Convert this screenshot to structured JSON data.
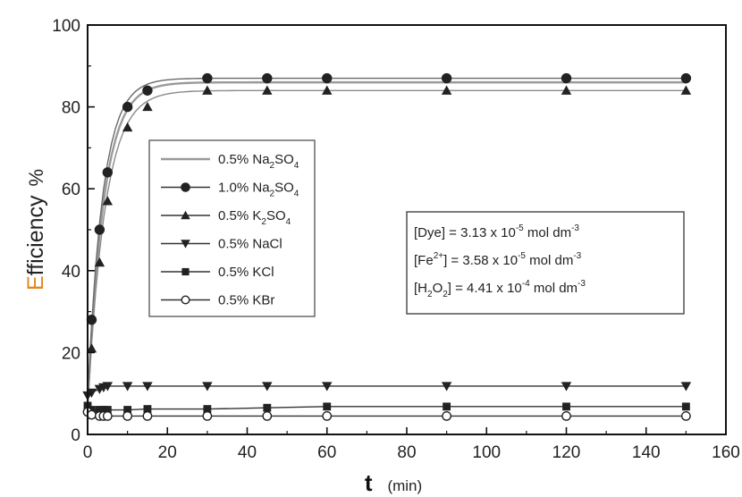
{
  "chart_data": {
    "type": "line",
    "xlabel": "t",
    "xunit": "(min)",
    "ylabel_part1": "Efficiency",
    "ylabel_part2": "%",
    "xlim": [
      0,
      160
    ],
    "ylim": [
      0,
      100
    ],
    "xticks": [
      0,
      20,
      40,
      60,
      80,
      100,
      120,
      140,
      160
    ],
    "yticks": [
      0,
      20,
      40,
      60,
      80,
      100
    ],
    "grid": false,
    "legend_position": "center-left",
    "ylabel_colors": {
      "first": "#e0891e",
      "rest": "#222222"
    },
    "series": [
      {
        "name": "0.5% Na2SO4",
        "label_main": "0.5% Na",
        "sub1": "2",
        "mid": "SO",
        "sub2": "4",
        "marker": "none",
        "fit": true,
        "x": [
          0,
          2,
          3,
          5,
          10,
          15,
          30,
          45,
          60,
          90,
          120,
          150
        ],
        "y": [
          25,
          46,
          54,
          61,
          78,
          83,
          86,
          86,
          86,
          86,
          86,
          86
        ]
      },
      {
        "name": "1.0% Na2SO4",
        "label_main": "1.0% Na",
        "sub1": "2",
        "mid": "SO",
        "sub2": "4",
        "marker": "circle-filled",
        "fit": true,
        "x": [
          1,
          3,
          5,
          10,
          15,
          30,
          45,
          60,
          90,
          120,
          150
        ],
        "y": [
          28,
          50,
          64,
          80,
          84,
          87,
          87,
          87,
          87,
          87,
          87
        ]
      },
      {
        "name": "0.5% K2SO4",
        "label_main": "0.5% K",
        "sub1": "2",
        "mid": "SO",
        "sub2": "4",
        "marker": "triangle-up",
        "fit": true,
        "x": [
          1,
          3,
          5,
          10,
          15,
          30,
          45,
          60,
          90,
          120,
          150
        ],
        "y": [
          21,
          42,
          57,
          75,
          80,
          84,
          84,
          84,
          84,
          84,
          84
        ]
      },
      {
        "name": "0.5% NaCl",
        "label_main": "0.5% NaCl",
        "marker": "triangle-down",
        "fit": false,
        "x": [
          0,
          1,
          3,
          4,
          5,
          10,
          15,
          30,
          45,
          60,
          90,
          120,
          150
        ],
        "y": [
          9.5,
          10.2,
          11.1,
          11.5,
          11.8,
          11.8,
          11.8,
          11.8,
          11.8,
          11.8,
          11.8,
          11.8,
          11.8
        ]
      },
      {
        "name": "0.5% KCl",
        "label_main": "0.5% KCl",
        "marker": "square-filled",
        "fit": false,
        "x": [
          0,
          1,
          3,
          4,
          5,
          10,
          15,
          30,
          45,
          60,
          90,
          120,
          150
        ],
        "y": [
          7.0,
          6.0,
          6.0,
          6.0,
          6.0,
          6.0,
          6.2,
          6.2,
          6.5,
          6.8,
          6.8,
          6.8,
          6.8
        ]
      },
      {
        "name": "0.5% KBr",
        "label_main": "0.5% KBr",
        "marker": "circle-open",
        "fit": false,
        "x": [
          0,
          1,
          3,
          4,
          5,
          10,
          15,
          30,
          45,
          60,
          90,
          120,
          150
        ],
        "y": [
          5.5,
          4.8,
          4.5,
          4.5,
          4.5,
          4.5,
          4.5,
          4.5,
          4.5,
          4.5,
          4.5,
          4.5,
          4.5
        ]
      }
    ],
    "annotation": {
      "lines": [
        {
          "pre": "[Dye] = 3.13 x 10",
          "sup": "-5",
          "post": " mol dm",
          "sup2": "-3"
        },
        {
          "pre": "[Fe",
          "sup": "2+",
          "mid": "] = 3.58 x 10",
          "sup_b": "-5",
          "post": " mol dm",
          "sup2": "-3"
        },
        {
          "pre": "[H",
          "sub": "2",
          "mid": "O",
          "sub_b": "2",
          "mid2": "] = 4.41 x 10",
          "sup_b": "-4",
          "post": " mol dm",
          "sup2": "-3"
        }
      ]
    }
  }
}
